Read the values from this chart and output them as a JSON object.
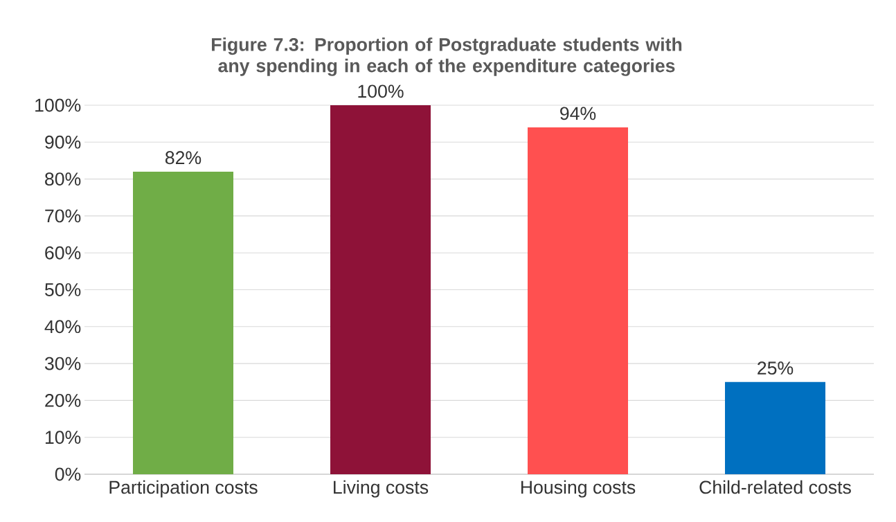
{
  "chart_data": {
    "type": "bar",
    "title": "Figure 7.3: Proportion of Postgraduate students with any spending in each of the expenditure categories",
    "categories": [
      "Participation costs",
      "Living costs",
      "Housing costs",
      "Child-related costs"
    ],
    "values": [
      82,
      100,
      94,
      25
    ],
    "colors": [
      "#70ad47",
      "#8e1238",
      "#ff5050",
      "#0070c0"
    ],
    "value_labels": [
      "82%",
      "100%",
      "94%",
      "25%"
    ],
    "ylim": [
      0,
      100
    ],
    "yticks": [
      {
        "value": 0,
        "label": "0%"
      },
      {
        "value": 10,
        "label": "10%"
      },
      {
        "value": 20,
        "label": "20%"
      },
      {
        "value": 30,
        "label": "30%"
      },
      {
        "value": 40,
        "label": "40%"
      },
      {
        "value": 50,
        "label": "50%"
      },
      {
        "value": 60,
        "label": "60%"
      },
      {
        "value": 70,
        "label": "70%"
      },
      {
        "value": 80,
        "label": "80%"
      },
      {
        "value": 90,
        "label": "90%"
      },
      {
        "value": 100,
        "label": "100%"
      }
    ],
    "grid": "y"
  }
}
